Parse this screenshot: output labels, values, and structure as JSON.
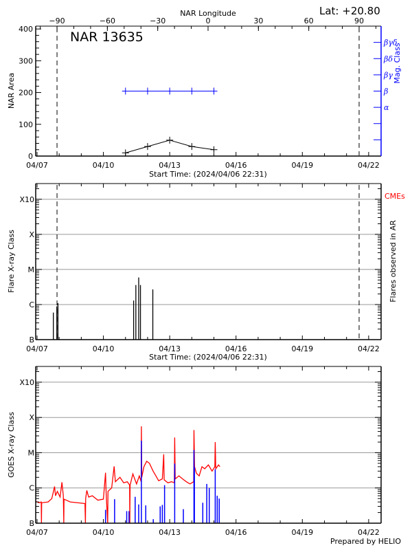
{
  "header": {
    "region_title": "NAR 13635",
    "latitude": "Lat: +20.80",
    "top_axis_label": "NAR Longitude",
    "footer": "Prepared by HELIO"
  },
  "colors": {
    "area": "#000000",
    "mag_class": "#0000ff",
    "goes_long": "#ff0000",
    "goes_short": "#0000ff",
    "cme": "#ff0000",
    "grid": "#999999"
  },
  "time_axis": {
    "start": "2024-04-06T22:31",
    "end": "2024-04-22T13:31",
    "tick_labels": [
      "04/07",
      "04/10",
      "04/13",
      "04/16",
      "04/19",
      "04/22"
    ],
    "tick_dates": [
      "2024-04-07",
      "2024-04-10",
      "2024-04-13",
      "2024-04-16",
      "2024-04-19",
      "2024-04-22"
    ],
    "minor_ticks": "daily",
    "start_label": "Start Time: (2024/04/06 22:31)"
  },
  "chart_data": [
    {
      "type": "line",
      "panel": "nar",
      "xlabel": "Start Time: (2024/04/06 22:31)",
      "ylabel": "NAR Area",
      "y2label": "Mag. Class",
      "top_xlabel": "NAR Longitude",
      "top_xlim": [
        -102.7,
        103.1
      ],
      "top_ticks": [
        "-90",
        "-60",
        "-30",
        "0",
        "30",
        "60",
        "90"
      ],
      "ylim": [
        0,
        409
      ],
      "yticks": [
        "0",
        "100",
        "200",
        "300",
        "400"
      ],
      "limb_longitudes": [
        -90,
        90
      ],
      "x": [
        "2024-04-11T00:00",
        "2024-04-12T00:00",
        "2024-04-13T00:00",
        "2024-04-14T00:00",
        "2024-04-15T00:00"
      ],
      "series": [
        {
          "axis": "left",
          "values": [
            10,
            30,
            50,
            30,
            20
          ]
        },
        {
          "axis": "right",
          "values": [
            "β",
            "β",
            "β",
            "β",
            "β"
          ]
        }
      ],
      "mag_class_axis": {
        "categories": [
          "",
          "",
          "α",
          "β",
          "βγ",
          "βδ",
          "βγδ"
        ],
        "ylim": [
          0,
          8
        ]
      }
    },
    {
      "type": "bar",
      "panel": "flares",
      "xlabel": "Start Time: (2024/04/06 22:31)",
      "ylabel": "Flare X-ray Class",
      "y2label": "Flares observed in AR",
      "cme_label": "CMEs",
      "yscale": "log",
      "ylim": [
        1e-07,
        0.0028
      ],
      "yticks": [
        "B",
        "C",
        "M",
        "X",
        "X10"
      ],
      "ytick_values": [
        1e-07,
        1e-06,
        1e-05,
        0.0001,
        0.001
      ],
      "grid": true,
      "limb_longitudes": [
        -90,
        90
      ],
      "flares": [
        {
          "time": "2024-04-07T17:40",
          "flux": 5.9e-07
        },
        {
          "time": "2024-04-07T21:25",
          "flux": 8.9e-07
        },
        {
          "time": "2024-04-07T22:40",
          "flux": 1.1e-06
        },
        {
          "time": "2024-04-11T08:50",
          "flux": 1.3e-06
        },
        {
          "time": "2024-04-11T11:15",
          "flux": 3.6e-06
        },
        {
          "time": "2024-04-11T14:20",
          "flux": 5.9e-06
        },
        {
          "time": "2024-04-11T16:15",
          "flux": 3.6e-06
        },
        {
          "time": "2024-04-12T05:40",
          "flux": 2.7e-06
        }
      ]
    },
    {
      "type": "line",
      "panel": "goes",
      "ylabel": "GOES X-ray Class",
      "yscale": "log",
      "ylim": [
        1e-07,
        0.0028
      ],
      "yticks": [
        "B",
        "C",
        "M",
        "X",
        "X10"
      ],
      "ytick_values": [
        1e-07,
        1e-06,
        1e-05,
        0.0001,
        0.001
      ],
      "grid": true,
      "series": [
        {
          "color": "#ff0000",
          "style": "line",
          "points": [
            [
              "2024-04-06T22:31",
              4.2e-07
            ],
            [
              "2024-04-07T02:00",
              3.8e-07
            ],
            [
              "2024-04-07T04:30",
              4e-07
            ],
            [
              "2024-04-07T04:45",
              1e-08
            ],
            [
              "2024-04-07T05:00",
              3.8e-07
            ],
            [
              "2024-04-07T12:00",
              4e-07
            ],
            [
              "2024-04-07T16:00",
              5e-07
            ],
            [
              "2024-04-07T19:00",
              1.1e-06
            ],
            [
              "2024-04-07T20:00",
              6e-07
            ],
            [
              "2024-04-07T22:00",
              8e-07
            ],
            [
              "2024-04-08T01:00",
              5.5e-07
            ],
            [
              "2024-04-08T03:00",
              1.45e-06
            ],
            [
              "2024-04-08T04:30",
              6e-07
            ],
            [
              "2024-04-08T05:00",
              1e-08
            ],
            [
              "2024-04-08T05:15",
              4.8e-07
            ],
            [
              "2024-04-08T12:00",
              4e-07
            ],
            [
              "2024-04-08T20:00",
              3.8e-07
            ],
            [
              "2024-04-09T04:00",
              3.6e-07
            ],
            [
              "2024-04-09T04:30",
              1e-08
            ],
            [
              "2024-04-09T04:45",
              5e-07
            ],
            [
              "2024-04-09T06:00",
              8.5e-07
            ],
            [
              "2024-04-09T08:00",
              5.5e-07
            ],
            [
              "2024-04-09T12:00",
              6e-07
            ],
            [
              "2024-04-09T18:00",
              4.5e-07
            ],
            [
              "2024-04-10T00:00",
              4.8e-07
            ],
            [
              "2024-04-10T02:20",
              2.7e-06
            ],
            [
              "2024-04-10T03:00",
              7e-07
            ],
            [
              "2024-04-10T04:40",
              1e-08
            ],
            [
              "2024-04-10T05:00",
              8e-07
            ],
            [
              "2024-04-10T09:00",
              1e-06
            ],
            [
              "2024-04-10T11:40",
              4.1e-06
            ],
            [
              "2024-04-10T13:00",
              1.5e-06
            ],
            [
              "2024-04-10T18:00",
              2e-06
            ],
            [
              "2024-04-10T22:00",
              1.4e-06
            ],
            [
              "2024-04-11T02:00",
              1.5e-06
            ],
            [
              "2024-04-11T04:30",
              1.2e-06
            ],
            [
              "2024-04-11T04:40",
              1e-08
            ],
            [
              "2024-04-11T05:00",
              1.2e-06
            ],
            [
              "2024-04-11T08:00",
              2.5e-06
            ],
            [
              "2024-04-11T12:00",
              1.3e-06
            ],
            [
              "2024-04-11T15:00",
              2.2e-06
            ],
            [
              "2024-04-11T17:00",
              1.5e-06
            ],
            [
              "2024-04-11T17:15",
              5.6e-05
            ],
            [
              "2024-04-11T17:40",
              2e-06
            ],
            [
              "2024-04-11T20:00",
              4e-06
            ],
            [
              "2024-04-11T23:00",
              5.7e-06
            ],
            [
              "2024-04-12T02:00",
              5e-06
            ],
            [
              "2024-04-12T06:00",
              3e-06
            ],
            [
              "2024-04-12T09:00",
              2.2e-06
            ],
            [
              "2024-04-12T12:00",
              1.6e-06
            ],
            [
              "2024-04-12T16:00",
              1.8e-06
            ],
            [
              "2024-04-12T17:30",
              9e-06
            ],
            [
              "2024-04-12T18:00",
              1.7e-06
            ],
            [
              "2024-04-12T22:00",
              1.4e-06
            ],
            [
              "2024-04-13T02:00",
              1.5e-06
            ],
            [
              "2024-04-13T05:00",
              1.4e-06
            ],
            [
              "2024-04-13T05:25",
              2.7e-05
            ],
            [
              "2024-04-13T06:00",
              1.8e-06
            ],
            [
              "2024-04-13T10:00",
              2.2e-06
            ],
            [
              "2024-04-13T14:00",
              1.8e-06
            ],
            [
              "2024-04-13T18:00",
              1.5e-06
            ],
            [
              "2024-04-13T22:00",
              1.3e-06
            ],
            [
              "2024-04-14T02:00",
              1.5e-06
            ],
            [
              "2024-04-14T02:20",
              4.4e-05
            ],
            [
              "2024-04-14T03:00",
              4e-06
            ],
            [
              "2024-04-14T05:00",
              2.6e-06
            ],
            [
              "2024-04-14T08:00",
              2.2e-06
            ],
            [
              "2024-04-14T11:00",
              4e-06
            ],
            [
              "2024-04-14T14:00",
              3.5e-06
            ],
            [
              "2024-04-14T18:00",
              4.5e-06
            ],
            [
              "2024-04-14T22:00",
              3e-06
            ],
            [
              "2024-04-15T01:00",
              4e-06
            ],
            [
              "2024-04-15T01:25",
              2e-05
            ],
            [
              "2024-04-15T02:00",
              3.5e-06
            ],
            [
              "2024-04-15T05:00",
              4.5e-06
            ],
            [
              "2024-04-15T06:30",
              4e-06
            ]
          ]
        },
        {
          "color": "#0000ff",
          "style": "impulse",
          "points": [
            [
              "2024-04-10T02:20",
              2.4e-07
            ],
            [
              "2024-04-10T12:10",
              4.8e-07
            ],
            [
              "2024-04-11T01:20",
              2.2e-07
            ],
            [
              "2024-04-11T03:50",
              2.2e-07
            ],
            [
              "2024-04-11T10:30",
              5.6e-07
            ],
            [
              "2024-04-11T14:20",
              3.4e-07
            ],
            [
              "2024-04-11T17:15",
              2.2e-05
            ],
            [
              "2024-04-11T22:00",
              3.2e-07
            ],
            [
              "2024-04-12T06:10",
              1.3e-07
            ],
            [
              "2024-04-12T13:40",
              3e-07
            ],
            [
              "2024-04-12T16:00",
              3.3e-07
            ],
            [
              "2024-04-12T18:25",
              1.2e-06
            ],
            [
              "2024-04-13T05:25",
              4.9e-06
            ],
            [
              "2024-04-13T14:50",
              2.5e-07
            ],
            [
              "2024-04-14T02:20",
              1.2e-05
            ],
            [
              "2024-04-14T02:50",
              3.9e-06
            ],
            [
              "2024-04-14T11:55",
              3.8e-07
            ],
            [
              "2024-04-14T16:15",
              1.3e-06
            ],
            [
              "2024-04-14T18:55",
              1e-06
            ],
            [
              "2024-04-15T01:25",
              3.4e-06
            ],
            [
              "2024-04-15T03:35",
              6e-07
            ],
            [
              "2024-04-15T05:45",
              5e-07
            ]
          ]
        }
      ]
    }
  ]
}
